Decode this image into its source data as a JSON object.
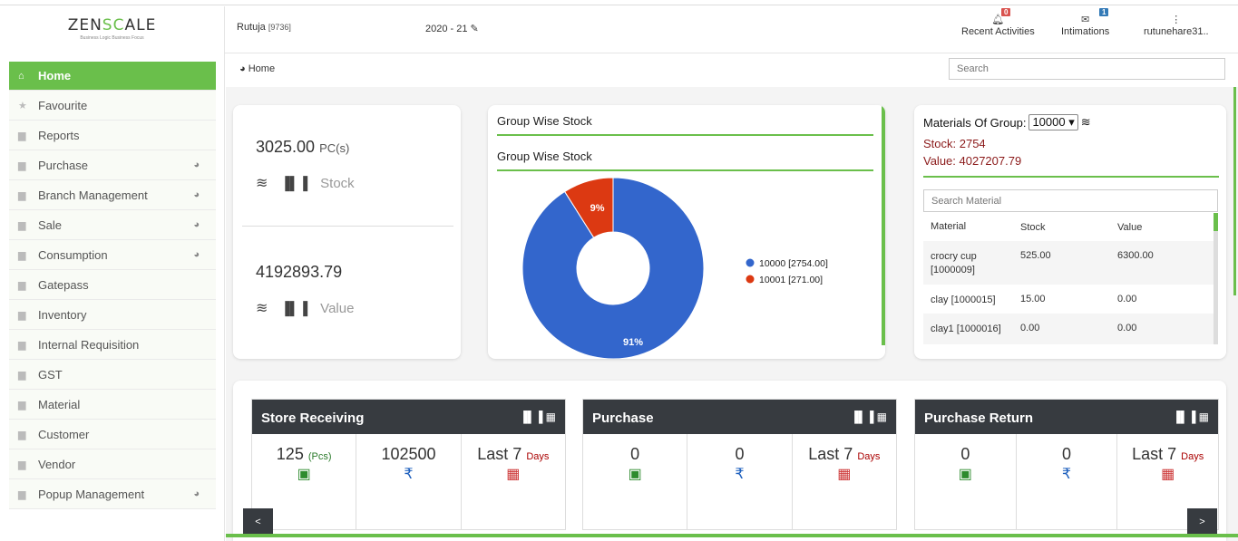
{
  "app": {
    "logo_prefix": "ZEN",
    "logo_s": "SC",
    "logo_suffix": "ALE",
    "tagline": "Business Logic Business Focus"
  },
  "header": {
    "user_name": "Rutuja",
    "user_id": "[9736]",
    "year": "2020 - 21",
    "recent_label": "Recent Activities",
    "recent_count": "0",
    "intimations_label": "Intimations",
    "intimations_count": "1",
    "account_label": "rutunehare31.."
  },
  "sidebar": {
    "items": [
      {
        "label": "Home",
        "icon": "home-icon"
      },
      {
        "label": "Favourite",
        "icon": "star-icon"
      },
      {
        "label": "Reports",
        "icon": "file-icon"
      },
      {
        "label": "Purchase",
        "icon": "folder-icon"
      },
      {
        "label": "Branch Management",
        "icon": "folder-icon"
      },
      {
        "label": "Sale",
        "icon": "folder-icon"
      },
      {
        "label": "Consumption",
        "icon": "folder-icon"
      },
      {
        "label": "Gatepass",
        "icon": "folder-icon"
      },
      {
        "label": "Inventory",
        "icon": "folder-icon"
      },
      {
        "label": "Internal Requisition",
        "icon": "folder-icon"
      },
      {
        "label": "GST",
        "icon": "folder-icon"
      },
      {
        "label": "Material",
        "icon": "folder-icon"
      },
      {
        "label": "Customer",
        "icon": "folder-icon"
      },
      {
        "label": "Vendor",
        "icon": "folder-icon"
      },
      {
        "label": "Popup Management",
        "icon": "folder-icon"
      }
    ]
  },
  "breadcrumb": {
    "label": "Home"
  },
  "search": {
    "placeholder": "Search"
  },
  "summary": {
    "stock_value": "3025.00",
    "stock_unit": "PC(s)",
    "stock_label": "Stock",
    "value_amount": "4192893.79",
    "value_label": "Value"
  },
  "group_stock": {
    "title1": "Group Wise Stock",
    "title2": "Group Wise Stock"
  },
  "chart_data": {
    "type": "pie",
    "categories": [
      "10000 [2754.00]",
      "10001 [271.00]"
    ],
    "values": [
      2754,
      271
    ],
    "percent_labels": [
      "91%",
      "9%"
    ],
    "colors": [
      "#3366cc",
      "#dc3912"
    ]
  },
  "materials": {
    "label": "Materials Of Group:",
    "selected": "10000",
    "stock_text": "Stock: 2754",
    "value_text": "Value: 4027207.79",
    "search_placeholder": "Search Material",
    "headers": [
      "Material",
      "Stock",
      "Value"
    ],
    "rows": [
      {
        "material": "crocry cup [1000009]",
        "stock": "525.00",
        "value": "6300.00"
      },
      {
        "material": "clay [1000015]",
        "stock": "15.00",
        "value": "0.00"
      },
      {
        "material": "clay1 [1000016]",
        "stock": "0.00",
        "value": "0.00"
      }
    ]
  },
  "panels": [
    {
      "title": "Store Receiving",
      "qty": "125",
      "qty_unit": "(Pcs)",
      "amount": "102500",
      "period_prefix": "Last 7",
      "period_unit": "Days"
    },
    {
      "title": "Purchase",
      "qty": "0",
      "amount": "0",
      "period_prefix": "Last 7",
      "period_unit": "Days"
    },
    {
      "title": "Purchase Return",
      "qty": "0",
      "amount": "0",
      "period_prefix": "Last 7",
      "period_unit": "Days"
    }
  ],
  "nav": {
    "prev": "<",
    "next": ">"
  }
}
